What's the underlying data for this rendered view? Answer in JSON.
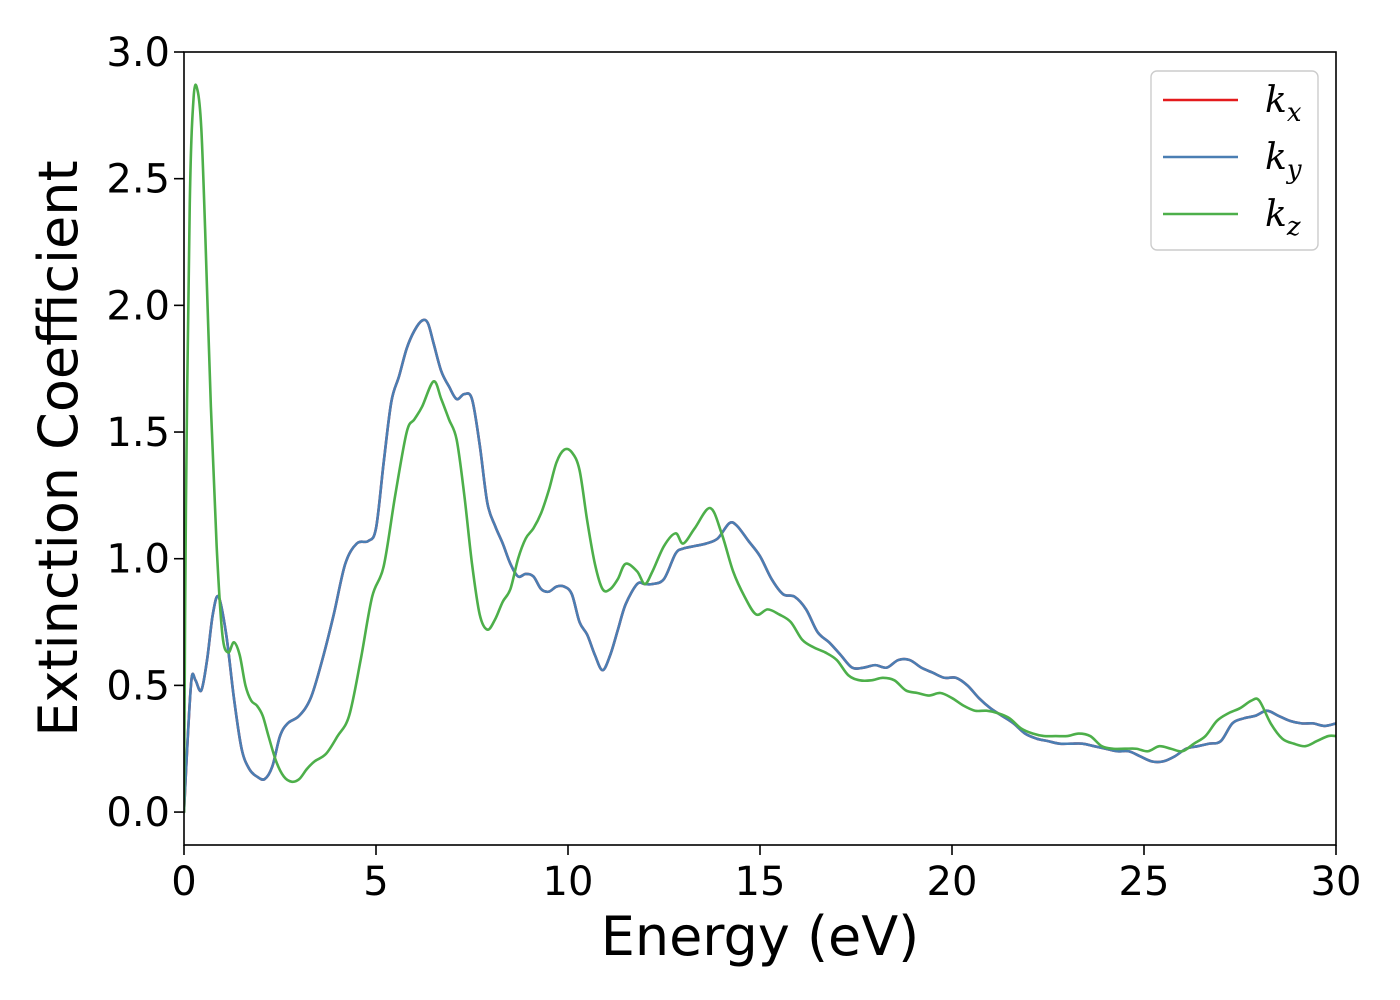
{
  "chart_data": {
    "type": "line",
    "xlabel": "Energy (eV)",
    "ylabel": "Extinction Coefficient",
    "xlim": [
      0,
      30
    ],
    "ylim": [
      -0.13,
      3.0
    ],
    "xticks": [
      "0",
      "5",
      "10",
      "15",
      "20",
      "25",
      "30"
    ],
    "yticks": [
      "0.0",
      "0.5",
      "1.0",
      "1.5",
      "2.0",
      "2.5",
      "3.0"
    ],
    "grid": false,
    "legend_position": "top-right",
    "series": [
      {
        "name": "k",
        "subscript": "x",
        "color": "#e41a1c",
        "x": [
          0,
          0.1,
          0.2,
          0.3,
          0.45,
          0.6,
          0.75,
          0.9,
          1.1,
          1.3,
          1.5,
          1.7,
          1.9,
          2.1,
          2.3,
          2.5,
          2.7,
          3.0,
          3.3,
          3.6,
          3.9,
          4.2,
          4.5,
          4.8,
          5.0,
          5.2,
          5.4,
          5.6,
          5.8,
          6.0,
          6.2,
          6.35,
          6.5,
          6.7,
          6.9,
          7.1,
          7.3,
          7.5,
          7.7,
          7.9,
          8.1,
          8.3,
          8.5,
          8.7,
          8.9,
          9.1,
          9.3,
          9.5,
          9.7,
          9.9,
          10.1,
          10.3,
          10.5,
          10.7,
          10.9,
          11.1,
          11.3,
          11.5,
          11.8,
          12.0,
          12.2,
          12.5,
          12.8,
          13.0,
          13.3,
          13.6,
          13.9,
          14.2,
          14.4,
          14.7,
          15.0,
          15.3,
          15.6,
          15.9,
          16.2,
          16.5,
          16.8,
          17.1,
          17.4,
          17.7,
          18.0,
          18.3,
          18.6,
          18.9,
          19.2,
          19.5,
          19.8,
          20.1,
          20.4,
          20.7,
          21.0,
          21.3,
          21.6,
          21.9,
          22.2,
          22.5,
          22.8,
          23.1,
          23.4,
          23.7,
          24.0,
          24.3,
          24.6,
          24.9,
          25.2,
          25.5,
          25.8,
          26.1,
          26.4,
          26.7,
          27.0,
          27.3,
          27.6,
          27.9,
          28.2,
          28.5,
          28.8,
          29.1,
          29.4,
          29.7,
          30.0
        ],
        "y": [
          0.0,
          0.3,
          0.53,
          0.52,
          0.48,
          0.6,
          0.78,
          0.85,
          0.7,
          0.45,
          0.25,
          0.17,
          0.14,
          0.13,
          0.18,
          0.3,
          0.35,
          0.38,
          0.45,
          0.6,
          0.78,
          0.98,
          1.06,
          1.07,
          1.12,
          1.38,
          1.62,
          1.72,
          1.83,
          1.9,
          1.94,
          1.93,
          1.85,
          1.74,
          1.68,
          1.63,
          1.65,
          1.63,
          1.45,
          1.22,
          1.13,
          1.06,
          0.98,
          0.93,
          0.94,
          0.93,
          0.88,
          0.87,
          0.89,
          0.89,
          0.86,
          0.75,
          0.7,
          0.62,
          0.56,
          0.62,
          0.72,
          0.82,
          0.9,
          0.9,
          0.9,
          0.92,
          1.02,
          1.04,
          1.05,
          1.06,
          1.08,
          1.14,
          1.13,
          1.07,
          1.01,
          0.92,
          0.86,
          0.85,
          0.8,
          0.71,
          0.67,
          0.62,
          0.57,
          0.57,
          0.58,
          0.57,
          0.6,
          0.6,
          0.57,
          0.55,
          0.53,
          0.53,
          0.5,
          0.45,
          0.41,
          0.38,
          0.35,
          0.31,
          0.29,
          0.28,
          0.27,
          0.27,
          0.27,
          0.26,
          0.25,
          0.24,
          0.24,
          0.22,
          0.2,
          0.2,
          0.22,
          0.25,
          0.26,
          0.27,
          0.28,
          0.35,
          0.37,
          0.38,
          0.4,
          0.38,
          0.36,
          0.35,
          0.35,
          0.34,
          0.35
        ],
        "hidden_under": "k_y"
      },
      {
        "name": "k",
        "subscript": "y",
        "color": "#4a7eb3",
        "x": [
          0,
          0.1,
          0.2,
          0.3,
          0.45,
          0.6,
          0.75,
          0.9,
          1.1,
          1.3,
          1.5,
          1.7,
          1.9,
          2.1,
          2.3,
          2.5,
          2.7,
          3.0,
          3.3,
          3.6,
          3.9,
          4.2,
          4.5,
          4.8,
          5.0,
          5.2,
          5.4,
          5.6,
          5.8,
          6.0,
          6.2,
          6.35,
          6.5,
          6.7,
          6.9,
          7.1,
          7.3,
          7.5,
          7.7,
          7.9,
          8.1,
          8.3,
          8.5,
          8.7,
          8.9,
          9.1,
          9.3,
          9.5,
          9.7,
          9.9,
          10.1,
          10.3,
          10.5,
          10.7,
          10.9,
          11.1,
          11.3,
          11.5,
          11.8,
          12.0,
          12.2,
          12.5,
          12.8,
          13.0,
          13.3,
          13.6,
          13.9,
          14.2,
          14.4,
          14.7,
          15.0,
          15.3,
          15.6,
          15.9,
          16.2,
          16.5,
          16.8,
          17.1,
          17.4,
          17.7,
          18.0,
          18.3,
          18.6,
          18.9,
          19.2,
          19.5,
          19.8,
          20.1,
          20.4,
          20.7,
          21.0,
          21.3,
          21.6,
          21.9,
          22.2,
          22.5,
          22.8,
          23.1,
          23.4,
          23.7,
          24.0,
          24.3,
          24.6,
          24.9,
          25.2,
          25.5,
          25.8,
          26.1,
          26.4,
          26.7,
          27.0,
          27.3,
          27.6,
          27.9,
          28.2,
          28.5,
          28.8,
          29.1,
          29.4,
          29.7,
          30.0
        ],
        "y": [
          0.0,
          0.3,
          0.53,
          0.52,
          0.48,
          0.6,
          0.78,
          0.85,
          0.7,
          0.45,
          0.25,
          0.17,
          0.14,
          0.13,
          0.18,
          0.3,
          0.35,
          0.38,
          0.45,
          0.6,
          0.78,
          0.98,
          1.06,
          1.07,
          1.12,
          1.38,
          1.62,
          1.72,
          1.83,
          1.9,
          1.94,
          1.93,
          1.85,
          1.74,
          1.68,
          1.63,
          1.65,
          1.63,
          1.45,
          1.22,
          1.13,
          1.06,
          0.98,
          0.93,
          0.94,
          0.93,
          0.88,
          0.87,
          0.89,
          0.89,
          0.86,
          0.75,
          0.7,
          0.62,
          0.56,
          0.62,
          0.72,
          0.82,
          0.9,
          0.9,
          0.9,
          0.92,
          1.02,
          1.04,
          1.05,
          1.06,
          1.08,
          1.14,
          1.13,
          1.07,
          1.01,
          0.92,
          0.86,
          0.85,
          0.8,
          0.71,
          0.67,
          0.62,
          0.57,
          0.57,
          0.58,
          0.57,
          0.6,
          0.6,
          0.57,
          0.55,
          0.53,
          0.53,
          0.5,
          0.45,
          0.41,
          0.38,
          0.35,
          0.31,
          0.29,
          0.28,
          0.27,
          0.27,
          0.27,
          0.26,
          0.25,
          0.24,
          0.24,
          0.22,
          0.2,
          0.2,
          0.22,
          0.25,
          0.26,
          0.27,
          0.28,
          0.35,
          0.37,
          0.38,
          0.4,
          0.38,
          0.36,
          0.35,
          0.35,
          0.34,
          0.35
        ]
      },
      {
        "name": "k",
        "subscript": "z",
        "color": "#4daf4a",
        "x": [
          0,
          0.05,
          0.15,
          0.25,
          0.35,
          0.45,
          0.55,
          0.7,
          0.85,
          1.0,
          1.15,
          1.3,
          1.45,
          1.6,
          1.75,
          1.9,
          2.05,
          2.2,
          2.4,
          2.6,
          2.8,
          3.0,
          3.2,
          3.4,
          3.7,
          4.0,
          4.3,
          4.6,
          4.9,
          5.2,
          5.5,
          5.8,
          6.0,
          6.2,
          6.5,
          6.7,
          6.9,
          7.1,
          7.3,
          7.5,
          7.7,
          7.9,
          8.1,
          8.3,
          8.5,
          8.7,
          8.9,
          9.1,
          9.3,
          9.5,
          9.7,
          9.9,
          10.1,
          10.3,
          10.5,
          10.7,
          10.9,
          11.1,
          11.3,
          11.5,
          11.8,
          12.0,
          12.2,
          12.5,
          12.8,
          13.0,
          13.3,
          13.7,
          14.0,
          14.3,
          14.6,
          14.9,
          15.2,
          15.5,
          15.8,
          16.1,
          16.4,
          16.7,
          17.0,
          17.3,
          17.6,
          17.9,
          18.2,
          18.5,
          18.8,
          19.1,
          19.4,
          19.7,
          20.0,
          20.3,
          20.6,
          20.9,
          21.2,
          21.5,
          21.8,
          22.1,
          22.4,
          22.7,
          23.0,
          23.3,
          23.6,
          23.9,
          24.2,
          24.5,
          24.8,
          25.1,
          25.4,
          25.7,
          26.0,
          26.3,
          26.6,
          26.9,
          27.2,
          27.5,
          27.8,
          28.0,
          28.3,
          28.6,
          28.9,
          29.2,
          29.5,
          29.8,
          30.0
        ],
        "y": [
          0.0,
          1.2,
          2.4,
          2.82,
          2.85,
          2.7,
          2.3,
          1.6,
          1.05,
          0.7,
          0.63,
          0.67,
          0.62,
          0.5,
          0.44,
          0.42,
          0.38,
          0.3,
          0.2,
          0.14,
          0.12,
          0.13,
          0.17,
          0.2,
          0.23,
          0.3,
          0.38,
          0.6,
          0.85,
          0.97,
          1.25,
          1.5,
          1.55,
          1.6,
          1.7,
          1.63,
          1.55,
          1.47,
          1.25,
          0.98,
          0.78,
          0.72,
          0.76,
          0.83,
          0.88,
          1.0,
          1.08,
          1.12,
          1.18,
          1.27,
          1.38,
          1.43,
          1.42,
          1.35,
          1.15,
          0.98,
          0.88,
          0.88,
          0.92,
          0.98,
          0.95,
          0.9,
          0.95,
          1.05,
          1.1,
          1.06,
          1.12,
          1.2,
          1.1,
          0.95,
          0.85,
          0.78,
          0.8,
          0.78,
          0.75,
          0.68,
          0.65,
          0.63,
          0.6,
          0.54,
          0.52,
          0.52,
          0.53,
          0.52,
          0.48,
          0.47,
          0.46,
          0.47,
          0.45,
          0.42,
          0.4,
          0.4,
          0.39,
          0.37,
          0.33,
          0.31,
          0.3,
          0.3,
          0.3,
          0.31,
          0.3,
          0.26,
          0.25,
          0.25,
          0.25,
          0.24,
          0.26,
          0.25,
          0.24,
          0.27,
          0.3,
          0.36,
          0.39,
          0.41,
          0.44,
          0.44,
          0.35,
          0.29,
          0.27,
          0.26,
          0.28,
          0.3,
          0.3
        ]
      }
    ]
  }
}
